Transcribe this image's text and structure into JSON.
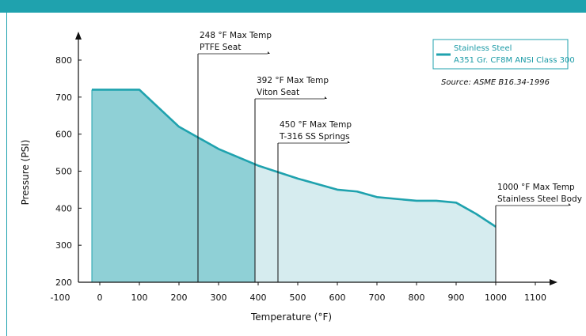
{
  "chart_data": {
    "type": "area",
    "xlabel": "Temperature (°F)",
    "ylabel": "Pressure (PSI)",
    "xlim": [
      -100,
      1100
    ],
    "ylim": [
      200,
      800
    ],
    "xticks": [
      -100,
      0,
      100,
      200,
      300,
      400,
      500,
      600,
      700,
      800,
      900,
      1000,
      1100
    ],
    "yticks": [
      200,
      300,
      400,
      500,
      600,
      700,
      800
    ],
    "series": [
      {
        "name": "Stainless Steel A351 Gr. CF8M ANSI Class 300",
        "color": "#1fa2ae",
        "x": [
          -20,
          100,
          200,
          300,
          400,
          500,
          600,
          650,
          700,
          800,
          850,
          900,
          950,
          1000
        ],
        "y": [
          720,
          720,
          620,
          560,
          515,
          480,
          450,
          445,
          430,
          420,
          420,
          415,
          385,
          350
        ]
      }
    ],
    "legend": {
      "line1": "Stainless Steel",
      "line2": "A351 Gr. CF8M ANSI Class 300",
      "position": "top-right"
    },
    "source": "Source: ASME  B16.34-1996",
    "annotations": [
      {
        "x": 248,
        "line1": "248 °F Max Temp",
        "line2": "PTFE Seat"
      },
      {
        "x": 392,
        "line1": "392 °F Max Temp",
        "line2": "Viton Seat"
      },
      {
        "x": 450,
        "line1": "450 °F Max Temp",
        "line2": "T-316 SS Springs"
      },
      {
        "x": 1000,
        "line1": "1000 °F Max Temp",
        "line2": "Stainless Steel Body"
      }
    ],
    "fill_dark_color": "#8fd0d6",
    "fill_light_color": "#d6ecef"
  }
}
